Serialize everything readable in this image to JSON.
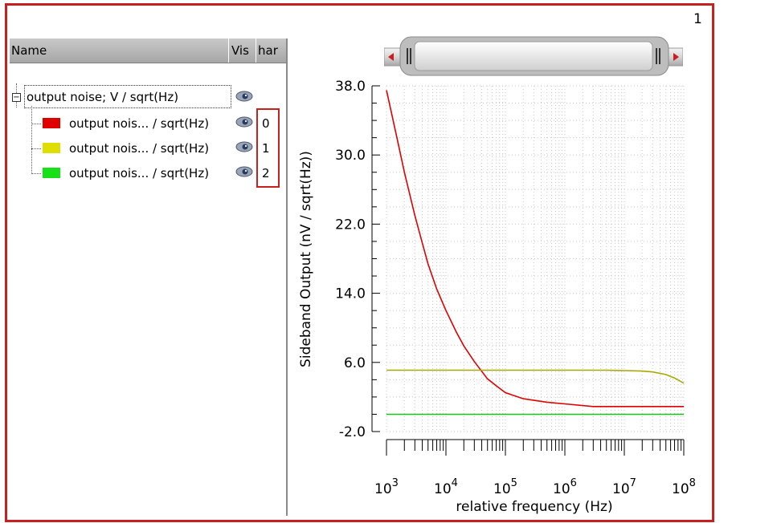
{
  "plot_number": "1",
  "legend_panel": {
    "columns": [
      "Name",
      "Vis",
      "har"
    ],
    "group": {
      "label": "output noise; V / sqrt(Hz)"
    },
    "items": [
      {
        "label": "output nois... / sqrt(Hz)",
        "color": "#e00000",
        "harmonic": "0"
      },
      {
        "label": "output nois... / sqrt(Hz)",
        "color": "#dede00",
        "harmonic": "1"
      },
      {
        "label": "output nois... / sqrt(Hz)",
        "color": "#17e017",
        "harmonic": "2"
      }
    ]
  },
  "chart_data": {
    "type": "line",
    "xlabel": "relative frequency (Hz)",
    "ylabel": "Sideband Output (nV / sqrt(Hz))",
    "x_scale": "log",
    "xlim": [
      1000,
      100000000
    ],
    "ylim": [
      -2.0,
      38.0
    ],
    "x_ticks": [
      {
        "base": "10",
        "exp": "3"
      },
      {
        "base": "10",
        "exp": "4"
      },
      {
        "base": "10",
        "exp": "5"
      },
      {
        "base": "10",
        "exp": "6"
      },
      {
        "base": "10",
        "exp": "7"
      },
      {
        "base": "10",
        "exp": "8"
      }
    ],
    "y_ticks": [
      "38.0",
      "30.0",
      "22.0",
      "14.0",
      "6.0",
      "-2.0"
    ],
    "grid": true,
    "series": [
      {
        "harmonic": "0",
        "color": "#e00000",
        "x": [
          1000,
          1500,
          2000,
          3000,
          4000,
          5000,
          7000,
          10000,
          15000,
          20000,
          30000,
          50000,
          70000,
          100000,
          200000,
          500000,
          1000000,
          3000000,
          10000000,
          30000000,
          100000000
        ],
        "y": [
          37.5,
          32.0,
          28.0,
          23.0,
          19.8,
          17.4,
          14.5,
          12.0,
          9.5,
          7.9,
          6.1,
          4.1,
          3.3,
          2.5,
          1.8,
          1.4,
          1.2,
          0.9,
          0.9,
          0.9,
          0.9
        ]
      },
      {
        "harmonic": "1",
        "color": "#a8a800",
        "x": [
          1000,
          10000,
          100000,
          1000000,
          5000000,
          10000000,
          20000000,
          30000000,
          50000000,
          70000000,
          100000000
        ],
        "y": [
          5.1,
          5.1,
          5.1,
          5.1,
          5.1,
          5.05,
          5.0,
          4.9,
          4.6,
          4.2,
          3.6
        ]
      },
      {
        "harmonic": "2",
        "color": "#17c417",
        "x": [
          1000,
          100000000
        ],
        "y": [
          0.0,
          0.0
        ]
      }
    ]
  }
}
